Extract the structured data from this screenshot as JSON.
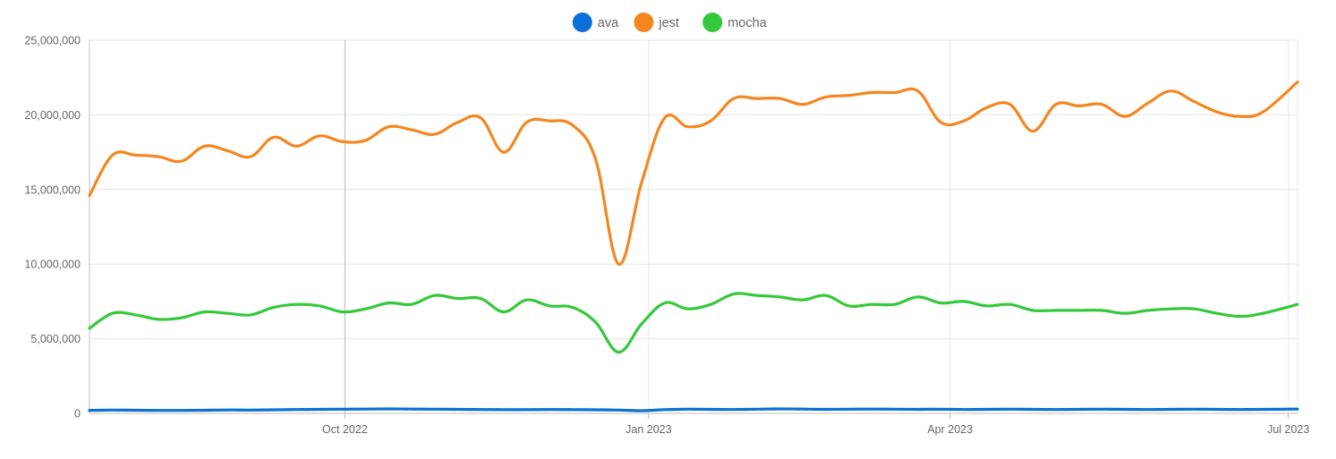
{
  "chart_data": {
    "type": "line",
    "title": "",
    "xlabel": "",
    "ylabel": "",
    "ylim": [
      0,
      25000000
    ],
    "y_ticks": [
      0,
      5000000,
      10000000,
      15000000,
      20000000,
      25000000
    ],
    "y_tick_labels": [
      "0",
      "5,000,000",
      "10,000,000",
      "15,000,000",
      "20,000,000",
      "25,000,000"
    ],
    "x_range_weeks": [
      0,
      52.5
    ],
    "x_ticks": [
      {
        "week": 11.1,
        "label": "Oct 2022"
      },
      {
        "week": 24.3,
        "label": "Jan 2023"
      },
      {
        "week": 37.4,
        "label": "Apr 2023"
      },
      {
        "week": 52.1,
        "label": "Jul 2023"
      }
    ],
    "highlight_week": 11.1,
    "legend_position": "top-center",
    "x_weeks": [
      0,
      1,
      2,
      3,
      4,
      5,
      6,
      7,
      8,
      9,
      10,
      11,
      12,
      13,
      14,
      15,
      16,
      17,
      18,
      19,
      20,
      21,
      22,
      23,
      24,
      25,
      26,
      27,
      28,
      29,
      30,
      31,
      32,
      33,
      34,
      35,
      36,
      37,
      38,
      39,
      40,
      41,
      42,
      43,
      44,
      45,
      46,
      47,
      48,
      49,
      50,
      51,
      52.5
    ],
    "series": [
      {
        "name": "ava",
        "color": "#0a6fd6",
        "values": [
          200000,
          220000,
          210000,
          200000,
          200000,
          210000,
          230000,
          220000,
          240000,
          260000,
          270000,
          280000,
          290000,
          300000,
          290000,
          280000,
          270000,
          260000,
          250000,
          250000,
          260000,
          250000,
          240000,
          220000,
          180000,
          250000,
          280000,
          270000,
          260000,
          280000,
          300000,
          290000,
          270000,
          280000,
          290000,
          280000,
          270000,
          280000,
          260000,
          270000,
          280000,
          270000,
          260000,
          270000,
          280000,
          270000,
          260000,
          270000,
          280000,
          270000,
          260000,
          270000,
          290000
        ]
      },
      {
        "name": "jest",
        "color": "#f5861f",
        "values": [
          14600000,
          17300000,
          17300000,
          17200000,
          16900000,
          17900000,
          17600000,
          17200000,
          18500000,
          17900000,
          18600000,
          18200000,
          18300000,
          19200000,
          19000000,
          18700000,
          19500000,
          19800000,
          17500000,
          19500000,
          19600000,
          19300000,
          17000000,
          10000000,
          15500000,
          19800000,
          19200000,
          19600000,
          21100000,
          21100000,
          21100000,
          20700000,
          21200000,
          21300000,
          21500000,
          21500000,
          21600000,
          19500000,
          19600000,
          20500000,
          20700000,
          18900000,
          20700000,
          20600000,
          20700000,
          19900000,
          20800000,
          21600000,
          20900000,
          20200000,
          19900000,
          20200000,
          22200000
        ]
      },
      {
        "name": "mocha",
        "color": "#34c83c",
        "values": [
          5700000,
          6700000,
          6600000,
          6300000,
          6400000,
          6800000,
          6700000,
          6600000,
          7100000,
          7300000,
          7200000,
          6800000,
          7000000,
          7400000,
          7300000,
          7900000,
          7700000,
          7700000,
          6800000,
          7600000,
          7200000,
          7100000,
          6100000,
          4100000,
          6000000,
          7400000,
          7000000,
          7300000,
          8000000,
          7900000,
          7800000,
          7600000,
          7900000,
          7200000,
          7300000,
          7300000,
          7800000,
          7400000,
          7500000,
          7200000,
          7300000,
          6900000,
          6900000,
          6900000,
          6900000,
          6700000,
          6900000,
          7000000,
          7000000,
          6700000,
          6500000,
          6700000,
          7300000
        ]
      }
    ]
  }
}
